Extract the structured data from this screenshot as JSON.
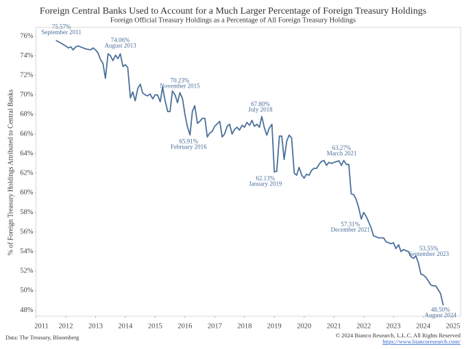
{
  "chart_data": {
    "type": "line",
    "title": "Foreign Central Banks Used to Account for a Much Larger Percentage of Foreign Treasury Holdings",
    "subtitle": "Foreign Official Treasury Holdings as a Percentage of All Foreign Treasury Holdings",
    "y_label": "% of Foreign Treasury Holdings Attributed to Central Banks",
    "source": "Data: The Treasury, Bloomberg",
    "copyright": "© 2024 Bianco Research, L.L.C. All Rights Reserved",
    "url": "https://www.biancoresearch.com/",
    "xlim": [
      2011,
      2025.25
    ],
    "xticks": [
      2011,
      2012,
      2013,
      2014,
      2015,
      2016,
      2017,
      2018,
      2019,
      2020,
      2021,
      2022,
      2023,
      2024,
      2025
    ],
    "ylim": [
      47.4,
      76.9
    ],
    "yticks": [
      {
        "value": 48,
        "label": "48%"
      },
      {
        "value": 50,
        "label": "50%"
      },
      {
        "value": 52,
        "label": "52%"
      },
      {
        "value": 54,
        "label": "54%"
      },
      {
        "value": 56,
        "label": "56%"
      },
      {
        "value": 58,
        "label": "58%"
      },
      {
        "value": 60,
        "label": "60%"
      },
      {
        "value": 62,
        "label": "62%"
      },
      {
        "value": 64,
        "label": "64%"
      },
      {
        "value": 66,
        "label": "66%"
      },
      {
        "value": 68,
        "label": "68%"
      },
      {
        "value": 70,
        "label": "70%"
      },
      {
        "value": 72,
        "label": "72%"
      },
      {
        "value": 74,
        "label": "74%"
      },
      {
        "value": 76,
        "label": "76%"
      }
    ],
    "grid": false,
    "x": [
      2011.67,
      2011.83,
      2012.0,
      2012.08,
      2012.17,
      2012.25,
      2012.33,
      2012.42,
      2012.5,
      2012.67,
      2012.83,
      2012.92,
      2013.0,
      2013.08,
      2013.17,
      2013.25,
      2013.33,
      2013.42,
      2013.5,
      2013.58,
      2013.67,
      2013.75,
      2013.83,
      2013.92,
      2014.0,
      2014.08,
      2014.17,
      2014.25,
      2014.33,
      2014.42,
      2014.5,
      2014.58,
      2014.67,
      2014.75,
      2014.83,
      2014.92,
      2015.0,
      2015.08,
      2015.17,
      2015.25,
      2015.33,
      2015.42,
      2015.5,
      2015.58,
      2015.67,
      2015.75,
      2015.83,
      2015.92,
      2016.0,
      2016.08,
      2016.17,
      2016.25,
      2016.33,
      2016.42,
      2016.5,
      2016.58,
      2016.67,
      2016.75,
      2016.83,
      2016.92,
      2017.0,
      2017.17,
      2017.25,
      2017.33,
      2017.42,
      2017.5,
      2017.58,
      2017.67,
      2017.75,
      2017.83,
      2017.92,
      2018.0,
      2018.08,
      2018.17,
      2018.25,
      2018.33,
      2018.42,
      2018.5,
      2018.58,
      2018.67,
      2018.75,
      2018.83,
      2018.92,
      2019.0,
      2019.08,
      2019.17,
      2019.25,
      2019.33,
      2019.42,
      2019.5,
      2019.58,
      2019.67,
      2019.75,
      2019.83,
      2019.92,
      2020.0,
      2020.08,
      2020.17,
      2020.25,
      2020.33,
      2020.42,
      2020.5,
      2020.58,
      2020.67,
      2020.75,
      2020.83,
      2020.92,
      2021.0,
      2021.17,
      2021.25,
      2021.33,
      2021.42,
      2021.5,
      2021.58,
      2021.67,
      2021.75,
      2021.83,
      2021.92,
      2022.0,
      2022.08,
      2022.17,
      2022.25,
      2022.33,
      2022.42,
      2022.5,
      2022.67,
      2022.75,
      2022.92,
      2023.0,
      2023.08,
      2023.17,
      2023.25,
      2023.33,
      2023.5,
      2023.58,
      2023.67,
      2023.75,
      2023.83,
      2023.92,
      2024.0,
      2024.08,
      2024.17,
      2024.25,
      2024.33,
      2024.42,
      2024.5,
      2024.58,
      2024.67
    ],
    "series": [
      {
        "name": "Foreign Official Treasury Holdings %",
        "color": "#4a6f9a",
        "values": [
          75.57,
          75.3,
          75.0,
          74.8,
          74.9,
          74.6,
          74.9,
          75.0,
          74.9,
          74.7,
          74.6,
          74.8,
          74.6,
          74.3,
          73.6,
          73.2,
          71.7,
          74.2,
          74.0,
          73.5,
          74.06,
          73.7,
          74.2,
          72.9,
          73.1,
          72.8,
          69.7,
          70.3,
          69.4,
          70.7,
          71.1,
          70.2,
          70.0,
          69.9,
          70.1,
          69.6,
          70.0,
          70.0,
          69.3,
          70.8,
          69.5,
          68.3,
          68.3,
          70.4,
          70.0,
          69.2,
          70.23,
          69.6,
          68.0,
          66.8,
          65.91,
          68.3,
          68.9,
          67.1,
          67.3,
          67.6,
          67.6,
          65.7,
          66.1,
          66.3,
          66.8,
          67.3,
          65.7,
          66.0,
          66.8,
          67.0,
          66.0,
          66.5,
          66.7,
          66.4,
          66.9,
          66.7,
          67.2,
          66.9,
          67.4,
          66.8,
          67.0,
          66.7,
          67.8,
          66.6,
          65.9,
          66.6,
          67.0,
          62.13,
          62.2,
          65.8,
          65.8,
          63.4,
          65.3,
          65.9,
          65.6,
          62.0,
          61.8,
          62.6,
          61.8,
          61.5,
          61.9,
          61.8,
          62.3,
          62.5,
          62.5,
          62.9,
          63.2,
          63.3,
          62.8,
          63.1,
          63.0,
          63.1,
          63.27,
          62.8,
          63.3,
          62.9,
          62.9,
          59.9,
          59.8,
          59.3,
          58.5,
          57.31,
          58.0,
          57.6,
          57.0,
          56.4,
          55.6,
          55.5,
          55.4,
          55.4,
          55.0,
          54.8,
          54.9,
          54.3,
          54.7,
          54.0,
          54.2,
          54.0,
          53.5,
          53.3,
          53.55,
          52.9,
          51.7,
          51.6,
          51.4,
          51.0,
          50.6,
          50.5,
          50.5,
          50.1,
          49.7,
          48.5
        ]
      }
    ],
    "annotations": [
      {
        "x": 2011.67,
        "value": 75.57,
        "label": "75.57%",
        "date": "September 2011"
      },
      {
        "x": 2013.67,
        "value": 74.06,
        "label": "74.06%",
        "date": "August 2013"
      },
      {
        "x": 2015.83,
        "value": 70.23,
        "label": "70.23%",
        "date": "November 2015"
      },
      {
        "x": 2016.17,
        "value": 65.91,
        "label": "65.91%",
        "date": "February 2016"
      },
      {
        "x": 2018.58,
        "value": 67.8,
        "label": "67.80%",
        "date": "July 2018"
      },
      {
        "x": 2019.0,
        "value": 62.13,
        "label": "62.13%",
        "date": "January 2019"
      },
      {
        "x": 2021.17,
        "value": 63.27,
        "label": "63.27%",
        "date": "March 2021"
      },
      {
        "x": 2021.92,
        "value": 57.31,
        "label": "57.31%",
        "date": "December 2021"
      },
      {
        "x": 2023.75,
        "value": 53.55,
        "label": "53.55%",
        "date": "September 2023"
      },
      {
        "x": 2024.67,
        "value": 48.5,
        "label": "48.50%",
        "date": "August 2024"
      }
    ]
  }
}
